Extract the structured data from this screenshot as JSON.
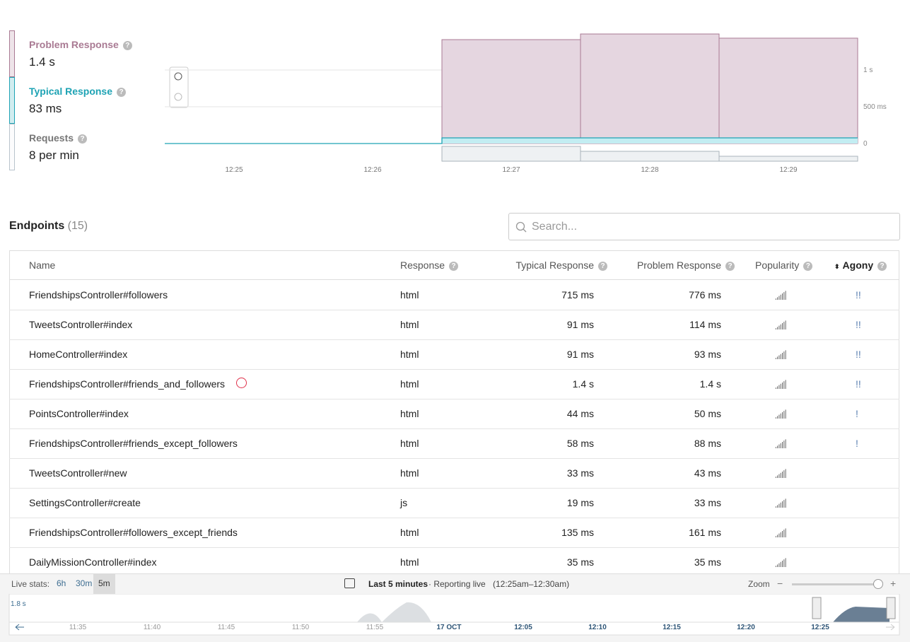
{
  "summary": {
    "metrics": [
      {
        "label": "Problem Response",
        "value": "1.4 s",
        "color": "#a97a93"
      },
      {
        "label": "Typical Response",
        "value": "83 ms",
        "color": "#1ea3b4"
      },
      {
        "label": "Requests",
        "value": "8 per min",
        "color": "#b9c4cc"
      }
    ]
  },
  "chart": {
    "x": [
      "12:25",
      "12:26",
      "12:27",
      "12:28",
      "12:29"
    ],
    "problem": [
      null,
      null,
      1413,
      1490,
      1433
    ],
    "typical": [
      0,
      0,
      77,
      77,
      77
    ],
    "requests": [
      null,
      null,
      12,
      8,
      4
    ],
    "ylim": [
      0,
      1600
    ],
    "yticks": [
      {
        "value": 0,
        "label": "0"
      },
      {
        "value": 500,
        "label": "500 ms"
      },
      {
        "value": 1000,
        "label": "1 s"
      }
    ]
  },
  "endpoints": {
    "title": "Endpoints",
    "count": "(15)",
    "search_placeholder": "Search...",
    "columns": [
      "Name",
      "Response",
      "Typical Response",
      "Problem Response",
      "Popularity",
      "Agony"
    ],
    "rows": [
      {
        "name": "FriendshipsController#followers",
        "response": "html",
        "typical": "715 ms",
        "problem": "776 ms",
        "agony": "!!"
      },
      {
        "name": "TweetsController#index",
        "response": "html",
        "typical": "91 ms",
        "problem": "114 ms",
        "agony": "!!"
      },
      {
        "name": "HomeController#index",
        "response": "html",
        "typical": "91 ms",
        "problem": "93 ms",
        "agony": "!!"
      },
      {
        "name": "FriendshipsController#friends_and_followers",
        "response": "html",
        "typical": "1.4 s",
        "problem": "1.4 s",
        "agony": "!!"
      },
      {
        "name": "PointsController#index",
        "response": "html",
        "typical": "44 ms",
        "problem": "50 ms",
        "agony": "!"
      },
      {
        "name": "FriendshipsController#friends_except_followers",
        "response": "html",
        "typical": "58 ms",
        "problem": "88 ms",
        "agony": "!"
      },
      {
        "name": "TweetsController#new",
        "response": "html",
        "typical": "33 ms",
        "problem": "43 ms"
      },
      {
        "name": "SettingsController#create",
        "response": "js",
        "typical": "19 ms",
        "problem": "33 ms"
      },
      {
        "name": "FriendshipsController#followers_except_friends",
        "response": "html",
        "typical": "135 ms",
        "problem": "161 ms"
      },
      {
        "name": "DailyMissionController#index",
        "response": "html",
        "typical": "35 ms",
        "problem": "35 ms"
      }
    ]
  },
  "footer": {
    "live_label": "Live stats:",
    "ranges": [
      "6h",
      "30m",
      "5m"
    ],
    "period": "Last 5 minutes",
    "status": "· Reporting live",
    "window": "(12:25am–12:30am)",
    "zoom": "Zoom",
    "timeline_max": "1.8 s",
    "timeline_ticks": [
      "11:35",
      "11:40",
      "11:45",
      "11:50",
      "11:55",
      "17 OCT",
      "12:05",
      "12:10",
      "12:15",
      "12:20",
      "12:25"
    ]
  }
}
